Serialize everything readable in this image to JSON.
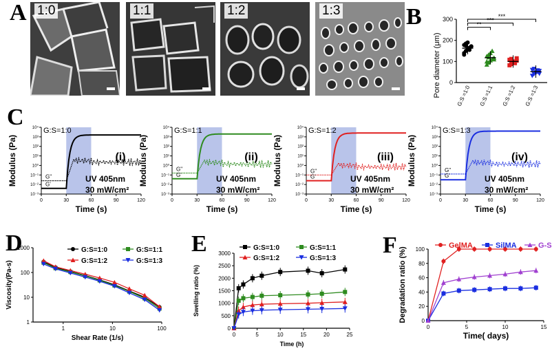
{
  "panel_labels": {
    "A": "A",
    "B": "B",
    "C": "C",
    "D": "D",
    "E": "E",
    "F": "F"
  },
  "sem_images": [
    {
      "label": "1:0"
    },
    {
      "label": "1:1"
    },
    {
      "label": "1:2"
    },
    {
      "label": "1:3"
    }
  ],
  "colors": {
    "g10": "#000000",
    "g11": "#2e8b1f",
    "g12": "#e02020",
    "g13": "#1a2ee0",
    "gelma": "#e02020",
    "silma": "#1a2ee0",
    "gs": "#a040d0",
    "uv_band": "#b9c4ea"
  },
  "chart_data": [
    {
      "id": "B",
      "type": "scatter",
      "ylabel": "Pore diameter (μm)",
      "ylim": [
        0,
        300
      ],
      "yticks": [
        "0",
        "100",
        "200",
        "300"
      ],
      "categories": [
        "G:S =1:0",
        "G:S =1:1",
        "G:S =1:2",
        "G:S =1:3"
      ],
      "means": [
        163,
        118,
        100,
        52
      ],
      "points": [
        [
          140,
          150,
          158,
          165,
          172,
          178,
          185,
          190,
          155,
          170,
          132,
          175
        ],
        [
          85,
          95,
          105,
          112,
          118,
          125,
          132,
          140,
          150,
          110,
          100,
          120
        ],
        [
          82,
          88,
          95,
          100,
          104,
          108,
          112,
          96,
          92,
          115
        ],
        [
          32,
          40,
          45,
          50,
          55,
          60,
          65,
          48,
          58,
          42
        ]
      ],
      "significance": [
        "**",
        "***",
        "***"
      ]
    },
    {
      "id": "C",
      "type": "line",
      "subplots": [
        {
          "title": "G:S=1:0",
          "tag": "(i)"
        },
        {
          "title": "G:S=1:1",
          "tag": "(ii)"
        },
        {
          "title": "G:S=1:2",
          "tag": "(iii)"
        },
        {
          "title": "G:S=1:3",
          "tag": "(iv)"
        }
      ],
      "ylabel": "Modulus (Pa)",
      "xlabel": "Time (s)",
      "xticks": [
        "0",
        "30",
        "60",
        "90",
        "120"
      ],
      "yticks": [
        "10⁻³",
        "10⁻²",
        "10⁻¹",
        "10⁰",
        "10¹",
        "10²",
        "10³",
        "10⁴"
      ],
      "uv_text": "UV 405nm",
      "power_text": "30 mW/cm²",
      "g2_label": "G\"",
      "g1_label": "G'"
    },
    {
      "id": "D",
      "type": "line",
      "xlabel": "Shear Rate (1/s)",
      "ylabel": "Viscosity(Pa-s)",
      "xticks": [
        "1",
        "10",
        "100"
      ],
      "yticks": [
        "1",
        "10",
        "100",
        "1000"
      ],
      "series": [
        {
          "name": "G:S=1:0",
          "x": [
            0.4,
            0.7,
            1.4,
            2.8,
            5.5,
            11,
            22,
            45,
            90
          ],
          "values": [
            270,
            160,
            110,
            75,
            50,
            32,
            18,
            10,
            4
          ]
        },
        {
          "name": "G:S=1:1",
          "x": [
            0.4,
            0.7,
            1.4,
            2.8,
            5.5,
            11,
            22,
            45,
            90
          ],
          "values": [
            250,
            150,
            105,
            72,
            48,
            30,
            17,
            9,
            3.5
          ]
        },
        {
          "name": "G:S=1:2",
          "x": [
            0.4,
            0.7,
            1.4,
            2.8,
            5.5,
            11,
            22,
            45,
            90
          ],
          "values": [
            300,
            170,
            120,
            85,
            60,
            40,
            22,
            12,
            4.2
          ]
        },
        {
          "name": "G:S=1:3",
          "x": [
            0.4,
            0.7,
            1.4,
            2.8,
            5.5,
            11,
            22,
            45,
            90
          ],
          "values": [
            220,
            140,
            95,
            65,
            44,
            28,
            15,
            8,
            3
          ]
        }
      ]
    },
    {
      "id": "E",
      "type": "line",
      "xlabel": "Time (h)",
      "ylabel": "Swelling ratio (%)",
      "xticks": [
        "0",
        "5",
        "10",
        "15",
        "20",
        "25"
      ],
      "yticks": [
        "0",
        "500",
        "1000",
        "1500",
        "2000",
        "2500",
        "3000"
      ],
      "series": [
        {
          "name": "G:S=1:0",
          "x": [
            0,
            1,
            2,
            4,
            6,
            10,
            16,
            19,
            24
          ],
          "values": [
            0,
            1600,
            1750,
            2000,
            2100,
            2250,
            2300,
            2200,
            2350
          ]
        },
        {
          "name": "G:S=1:1",
          "x": [
            0,
            1,
            2,
            4,
            6,
            10,
            16,
            19,
            24
          ],
          "values": [
            0,
            1100,
            1200,
            1250,
            1300,
            1320,
            1350,
            1380,
            1450
          ]
        },
        {
          "name": "G:S=1:2",
          "x": [
            0,
            1,
            2,
            4,
            6,
            10,
            16,
            19,
            24
          ],
          "values": [
            0,
            700,
            850,
            930,
            960,
            980,
            1000,
            1020,
            1050
          ]
        },
        {
          "name": "G:S=1:3",
          "x": [
            0,
            1,
            2,
            4,
            6,
            10,
            16,
            19,
            24
          ],
          "values": [
            0,
            550,
            650,
            700,
            720,
            740,
            760,
            770,
            790
          ]
        }
      ]
    },
    {
      "id": "F",
      "type": "line",
      "xlabel": "Time( days)",
      "ylabel": "Degradation ratio (%)",
      "xticks": [
        "0",
        "5",
        "10",
        "15"
      ],
      "yticks": [
        "0",
        "20",
        "40",
        "60",
        "80",
        "100"
      ],
      "series": [
        {
          "name": "GelMA",
          "x": [
            0,
            2,
            4,
            6,
            8,
            10,
            12,
            14
          ],
          "values": [
            0,
            83,
            100,
            100,
            100,
            100,
            100,
            100
          ]
        },
        {
          "name": "SilMA",
          "x": [
            0,
            2,
            4,
            6,
            8,
            10,
            12,
            14
          ],
          "values": [
            0,
            38,
            42,
            43,
            44,
            45,
            45,
            46
          ]
        },
        {
          "name": "G-S",
          "x": [
            0,
            2,
            4,
            6,
            8,
            10,
            12,
            14
          ],
          "values": [
            0,
            53,
            58,
            61,
            63,
            65,
            68,
            70
          ]
        }
      ]
    }
  ]
}
